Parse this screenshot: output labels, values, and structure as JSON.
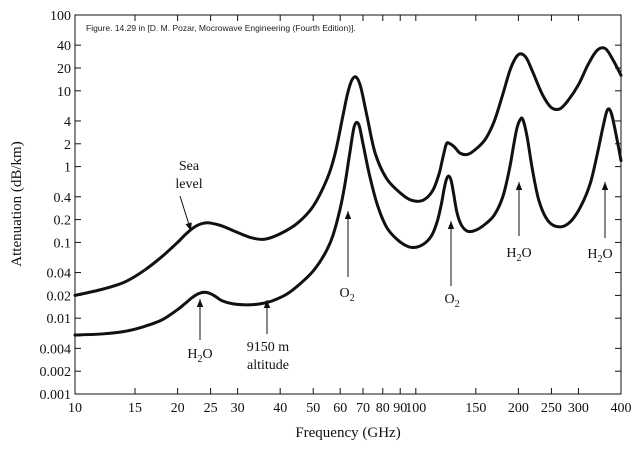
{
  "chart_data": {
    "type": "line",
    "title": "",
    "caption": "Figure. 14.29 in [D. M. Pozar, Mocrowave Engineering (Fourth Edition)].",
    "xlabel": "Frequency (GHz)",
    "ylabel": "Attenuation (dB/km)",
    "x_scale": "log",
    "y_scale": "log",
    "xlim": [
      10,
      400
    ],
    "ylim": [
      0.001,
      100
    ],
    "x_ticks": [
      10,
      15,
      20,
      25,
      30,
      40,
      50,
      60,
      70,
      80,
      90,
      100,
      150,
      200,
      250,
      300,
      400
    ],
    "x_tick_labels": [
      "10",
      "15",
      "20",
      "25",
      "30",
      "40",
      "50",
      "60",
      "70",
      "80",
      "90",
      "100",
      "150",
      "200",
      "250",
      "300",
      "400"
    ],
    "y_ticks": [
      0.001,
      0.002,
      0.004,
      0.01,
      0.02,
      0.04,
      0.1,
      0.2,
      0.4,
      1,
      2,
      4,
      10,
      20,
      40,
      100
    ],
    "y_tick_labels": [
      "0.001",
      "0.002",
      "0.004",
      "0.01",
      "0.02",
      "0.04",
      "0.1",
      "0.2",
      "0.4",
      "1",
      "2",
      "4",
      "10",
      "20",
      "40",
      "100"
    ],
    "grid": false,
    "series": [
      {
        "x": [
          10,
          12,
          14,
          16,
          18,
          20,
          21,
          22,
          23,
          24,
          25,
          27,
          30,
          33,
          36,
          40,
          45,
          50,
          55,
          58,
          61,
          63,
          65,
          67,
          69,
          72,
          76,
          82,
          90,
          97,
          105,
          112,
          117,
          120,
          123,
          126,
          130,
          135,
          142,
          150,
          160,
          170,
          180,
          190,
          200,
          210,
          220,
          235,
          250,
          265,
          280,
          300,
          320,
          340,
          360,
          380,
          400
        ],
        "y": [
          0.02,
          0.024,
          0.03,
          0.043,
          0.065,
          0.1,
          0.125,
          0.15,
          0.17,
          0.18,
          0.18,
          0.165,
          0.135,
          0.115,
          0.11,
          0.13,
          0.18,
          0.3,
          0.7,
          1.5,
          4.5,
          9,
          14,
          15,
          11,
          4.5,
          1.5,
          0.7,
          0.45,
          0.36,
          0.36,
          0.48,
          0.8,
          1.3,
          2,
          2,
          1.8,
          1.5,
          1.45,
          1.7,
          2.3,
          4,
          9,
          20,
          30,
          28,
          18,
          9,
          6,
          5.8,
          7.5,
          12,
          22,
          34,
          36,
          25,
          16
        ]
      },
      {
        "x": [
          10,
          12,
          14,
          16,
          18,
          20,
          21,
          22,
          23,
          24,
          25,
          26,
          27,
          29,
          32,
          35,
          38,
          42,
          46,
          50,
          54,
          57,
          60,
          62,
          64,
          66,
          68,
          70,
          73,
          77,
          82,
          88,
          95,
          101,
          107,
          112,
          116,
          119,
          121,
          123,
          125,
          127,
          129,
          132,
          136,
          142,
          150,
          160,
          170,
          180,
          188,
          194,
          198,
          202,
          206,
          212,
          220,
          230,
          245,
          265,
          285,
          305,
          325,
          340,
          355,
          365,
          375,
          390,
          400
        ],
        "y": [
          0.006,
          0.0062,
          0.0067,
          0.0078,
          0.0095,
          0.013,
          0.0155,
          0.0185,
          0.021,
          0.022,
          0.021,
          0.019,
          0.017,
          0.0155,
          0.015,
          0.0155,
          0.017,
          0.021,
          0.029,
          0.042,
          0.07,
          0.12,
          0.28,
          0.6,
          1.5,
          3.4,
          3.6,
          2,
          0.8,
          0.32,
          0.16,
          0.11,
          0.088,
          0.087,
          0.1,
          0.13,
          0.2,
          0.33,
          0.5,
          0.68,
          0.75,
          0.65,
          0.45,
          0.25,
          0.17,
          0.14,
          0.145,
          0.175,
          0.23,
          0.4,
          0.9,
          2,
          3.2,
          4.1,
          4.2,
          2.5,
          0.9,
          0.35,
          0.19,
          0.16,
          0.19,
          0.3,
          0.6,
          1.4,
          3.5,
          5.6,
          5,
          2.2,
          1.2
        ]
      }
    ],
    "annotations": [
      {
        "lines": [
          "Sea",
          "level"
        ]
      },
      {
        "lines": [
          "9150 m",
          "altitude"
        ]
      },
      {
        "lines": [
          "H",
          "2",
          "O"
        ],
        "kind": "H2O",
        "at": 24
      },
      {
        "lines": [
          "O",
          "2"
        ],
        "kind": "O2",
        "at": 60
      },
      {
        "lines": [
          "O",
          "2"
        ],
        "kind": "O2",
        "at": 118
      },
      {
        "lines": [
          "H",
          "2",
          "O"
        ],
        "kind": "H2O",
        "at": 183
      },
      {
        "lines": [
          "H",
          "2",
          "O"
        ],
        "kind": "H2O",
        "at": 325
      }
    ]
  }
}
